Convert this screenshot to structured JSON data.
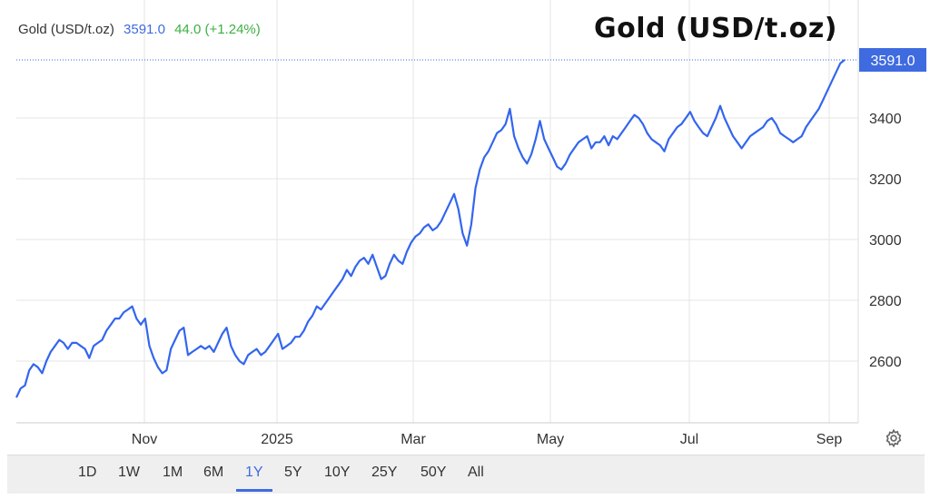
{
  "header": {
    "name": "Gold (USD/t.oz)",
    "last": "3591.0",
    "change": "44.0 (+1.24%)"
  },
  "big_title": "Gold (USD/t.oz)",
  "last_price_tag": "3591.0",
  "colors": {
    "line": "#3366ee",
    "last": "#3f6be0",
    "change": "#3cb043",
    "grid": "#e6e6e6"
  },
  "settings_icon": "gear-icon",
  "range_buttons": [
    "1D",
    "1W",
    "1M",
    "6M",
    "1Y",
    "5Y",
    "10Y",
    "25Y",
    "50Y",
    "All"
  ],
  "active_range": "1Y",
  "chart_data": {
    "type": "line",
    "title": "Gold (USD/t.oz)",
    "xlabel": "",
    "ylabel": "",
    "ylim": [
      2400,
      3620
    ],
    "yticks": [
      2600,
      2800,
      3000,
      3200,
      3400
    ],
    "xticks": [
      "Nov",
      "2025",
      "Mar",
      "May",
      "Jul",
      "Sep"
    ],
    "grid": true,
    "last_value": 3591.0,
    "series": [
      {
        "values": [
          2480,
          2510,
          2520,
          2570,
          2590,
          2580,
          2560,
          2600,
          2630,
          2650,
          2670,
          2660,
          2640,
          2660,
          2660,
          2650,
          2640,
          2610,
          2650,
          2660,
          2670,
          2700,
          2720,
          2740,
          2740,
          2760,
          2770,
          2780,
          2740,
          2720,
          2740,
          2650,
          2610,
          2580,
          2560,
          2570,
          2640,
          2670,
          2700,
          2710,
          2620,
          2630,
          2640,
          2650,
          2640,
          2650,
          2630,
          2660,
          2690,
          2710,
          2650,
          2620,
          2600,
          2590,
          2620,
          2630,
          2640,
          2620,
          2630,
          2650,
          2670,
          2690,
          2640,
          2650,
          2660,
          2680,
          2680,
          2700,
          2730,
          2750,
          2780,
          2770,
          2790,
          2810,
          2830,
          2850,
          2870,
          2900,
          2880,
          2910,
          2930,
          2940,
          2920,
          2950,
          2910,
          2870,
          2880,
          2920,
          2950,
          2930,
          2920,
          2960,
          2990,
          3010,
          3020,
          3040,
          3050,
          3030,
          3040,
          3060,
          3090,
          3120,
          3150,
          3100,
          3020,
          2980,
          3050,
          3170,
          3230,
          3270,
          3290,
          3320,
          3350,
          3360,
          3380,
          3430,
          3340,
          3300,
          3270,
          3250,
          3280,
          3330,
          3390,
          3330,
          3300,
          3270,
          3240,
          3230,
          3250,
          3280,
          3300,
          3320,
          3330,
          3340,
          3300,
          3320,
          3320,
          3340,
          3310,
          3340,
          3330,
          3350,
          3370,
          3390,
          3410,
          3400,
          3380,
          3350,
          3330,
          3320,
          3310,
          3290,
          3330,
          3350,
          3370,
          3380,
          3400,
          3420,
          3390,
          3370,
          3350,
          3340,
          3370,
          3400,
          3440,
          3400,
          3370,
          3340,
          3320,
          3300,
          3320,
          3340,
          3350,
          3360,
          3370,
          3390,
          3400,
          3380,
          3350,
          3340,
          3330,
          3320,
          3330,
          3340,
          3370,
          3390,
          3410,
          3430,
          3460,
          3490,
          3520,
          3550,
          3580,
          3591
        ]
      }
    ]
  }
}
